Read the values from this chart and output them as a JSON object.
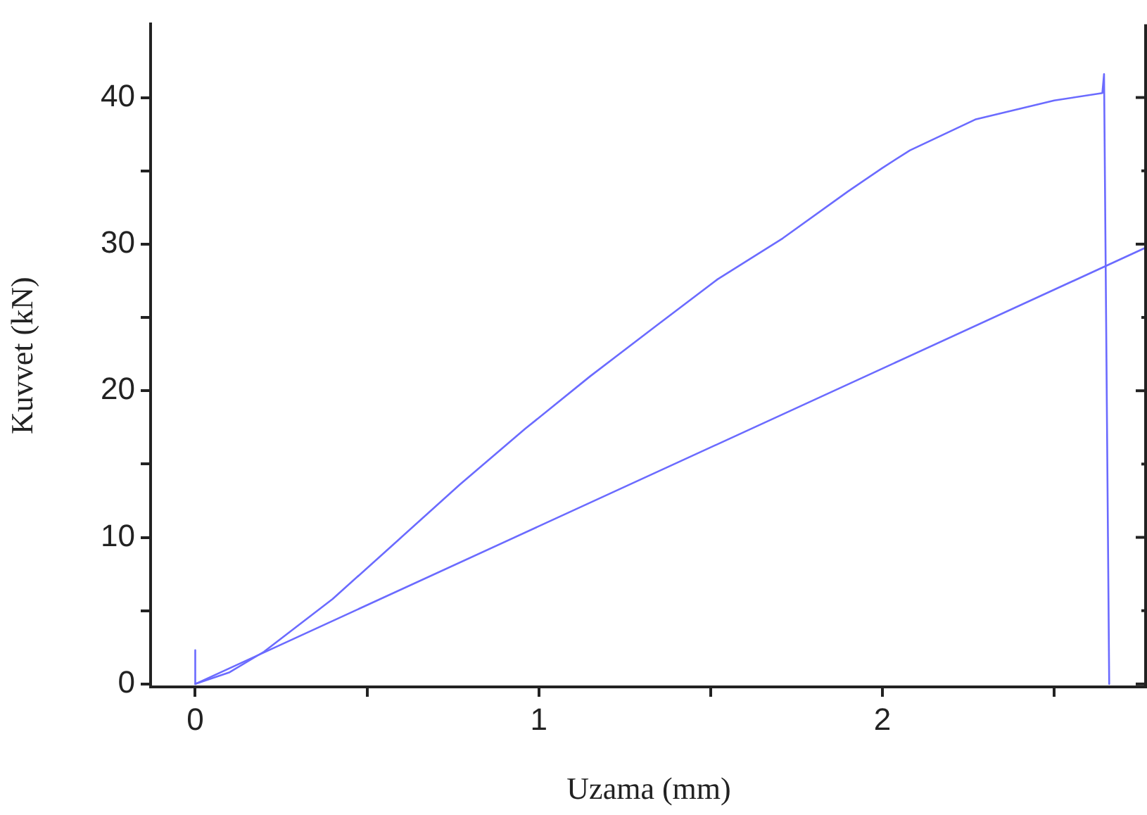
{
  "chart_data": {
    "type": "line",
    "xlabel": "Uzama (mm)",
    "ylabel": "Kuvvet (kN)",
    "xlim": [
      -0.13,
      2.77
    ],
    "ylim": [
      -0.2,
      45
    ],
    "xticks": [
      0,
      {
        "value": 0.5,
        "label": null
      },
      1,
      {
        "value": 1.5,
        "label": null
      },
      2,
      {
        "value": 2.5,
        "label": null
      }
    ],
    "yticks": [
      0,
      {
        "value": 5,
        "label": null
      },
      10,
      {
        "value": 15,
        "label": null
      },
      20,
      {
        "value": 25,
        "label": null
      },
      30,
      {
        "value": 35,
        "label": null
      },
      40
    ],
    "grid": false,
    "legend": false,
    "marker": "none",
    "line_style": "solid",
    "series": [
      {
        "color": "#6b6bff",
        "x": [
          0,
          0,
          0.1,
          0.2,
          0.4,
          0.59,
          0.77,
          0.96,
          1.15,
          1.34,
          1.52,
          1.71,
          1.9,
          2.0,
          2.08,
          2.27,
          2.5,
          2.64,
          2.645,
          2.66
        ],
        "values": [
          2.3,
          0,
          0.8,
          2.2,
          5.8,
          9.8,
          13.6,
          17.4,
          21.0,
          24.4,
          27.6,
          30.4,
          33.6,
          35.2,
          36.4,
          38.5,
          39.8,
          40.3,
          41.6,
          0
        ]
      },
      {
        "color": "#6b6bff",
        "x": [
          0,
          2.77
        ],
        "values": [
          0,
          29.8
        ]
      }
    ]
  }
}
